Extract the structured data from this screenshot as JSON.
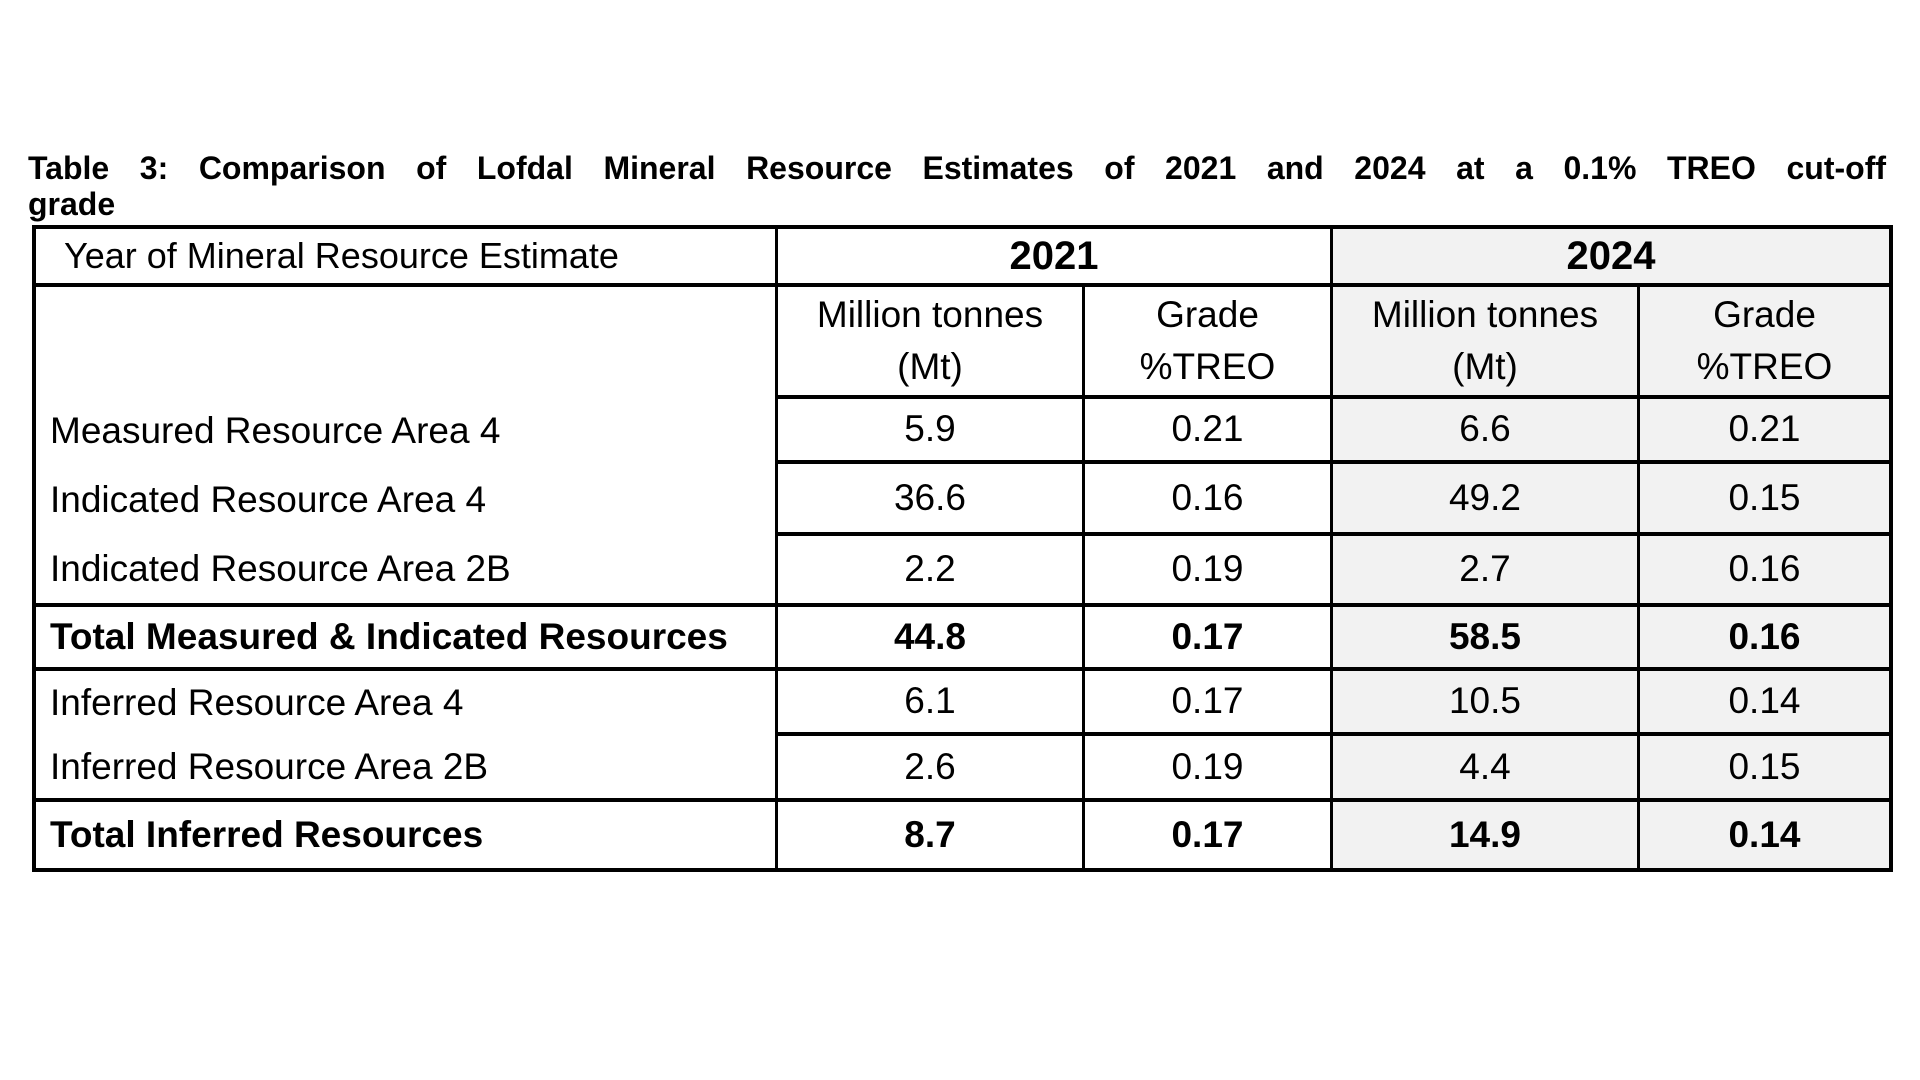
{
  "title": {
    "line1": "Table 3: Comparison of Lofdal Mineral Resource Estimates of 2021 and 2024 at a 0.1% TREO cut-off",
    "line2": "grade"
  },
  "table": {
    "corner_header": "Year of Mineral Resource Estimate",
    "year_groups": [
      {
        "label": "2021"
      },
      {
        "label": "2024"
      }
    ],
    "columns": [
      {
        "line1": "Million tonnes",
        "line2": "(Mt)",
        "group": "2021"
      },
      {
        "line1": "Grade",
        "line2": "%TREO",
        "group": "2021"
      },
      {
        "line1": "Million tonnes",
        "line2": "(Mt)",
        "group": "2024"
      },
      {
        "line1": "Grade",
        "line2": "%TREO",
        "group": "2024"
      }
    ],
    "rows": [
      {
        "label": "Measured Resource Area 4",
        "values": [
          "5.9",
          "0.21",
          "6.6",
          "0.21"
        ],
        "bold": false
      },
      {
        "label": "Indicated Resource Area 4",
        "values": [
          "36.6",
          "0.16",
          "49.2",
          "0.15"
        ],
        "bold": false
      },
      {
        "label": "Indicated Resource Area 2B",
        "values": [
          "2.2",
          "0.19",
          "2.7",
          "0.16"
        ],
        "bold": false
      },
      {
        "label": "Total Measured & Indicated Resources",
        "values": [
          "44.8",
          "0.17",
          "58.5",
          "0.16"
        ],
        "bold": true
      },
      {
        "label": "Inferred Resource Area 4",
        "values": [
          "6.1",
          "0.17",
          "10.5",
          "0.14"
        ],
        "bold": false
      },
      {
        "label": "Inferred Resource Area 2B",
        "values": [
          "2.6",
          "0.19",
          "4.4",
          "0.15"
        ],
        "bold": false
      },
      {
        "label": "Total Inferred Resources",
        "values": [
          "8.7",
          "0.17",
          "14.9",
          "0.14"
        ],
        "bold": true
      }
    ],
    "colors": {
      "shading_2024": "#f2f2f2",
      "border": "#000000",
      "text": "#000000"
    }
  }
}
